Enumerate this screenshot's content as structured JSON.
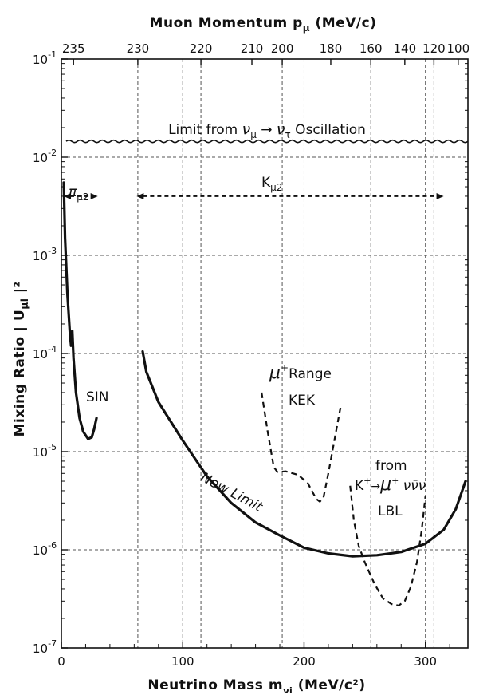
{
  "chart_data": {
    "type": "line",
    "xlabel": "Neutrino Mass  m",
    "xlabel_sub": "νi",
    "xlabel_unit": "(MeV/c²)",
    "ylabel": "Mixing Ratio  | U",
    "ylabel_sub": "μi",
    "ylabel_tail": " |²",
    "top_axis_label": "Muon Momentum  p",
    "top_axis_sub": "μ",
    "top_axis_unit": "(MeV/c)",
    "xlim": [
      0,
      335
    ],
    "ylim": [
      1e-07,
      0.1
    ],
    "y_scale": "log",
    "grid": true,
    "x_ticks": [
      {
        "value": 0,
        "label": "0"
      },
      {
        "value": 100,
        "label": "100"
      },
      {
        "value": 200,
        "label": "200"
      },
      {
        "value": 300,
        "label": "300"
      }
    ],
    "y_ticks": [
      {
        "value": 1e-07,
        "label": "10",
        "exp": "-7"
      },
      {
        "value": 1e-06,
        "label": "10",
        "exp": "-6"
      },
      {
        "value": 1e-05,
        "label": "10",
        "exp": "-5"
      },
      {
        "value": 0.0001,
        "label": "10",
        "exp": "-4"
      },
      {
        "value": 0.001,
        "label": "10",
        "exp": "-3"
      },
      {
        "value": 0.01,
        "label": "10",
        "exp": "-2"
      },
      {
        "value": 0.1,
        "label": "10",
        "exp": "-1"
      }
    ],
    "top_ticks": [
      {
        "value": 10,
        "label": "235"
      },
      {
        "value": 63,
        "label": "230"
      },
      {
        "value": 115,
        "label": "220"
      },
      {
        "value": 157,
        "label": "210"
      },
      {
        "value": 182,
        "label": "200"
      },
      {
        "value": 222,
        "label": "180"
      },
      {
        "value": 255,
        "label": "160"
      },
      {
        "value": 283,
        "label": "140"
      },
      {
        "value": 307,
        "label": "120"
      },
      {
        "value": 327,
        "label": "100"
      }
    ],
    "top_grid": [
      63,
      115,
      182,
      255,
      307
    ],
    "series": [
      {
        "name": "SIN",
        "style": "solid",
        "points": [
          [
            2,
            0.0055
          ],
          [
            3,
            0.0015
          ],
          [
            5,
            0.0004
          ],
          [
            7,
            0.00016
          ],
          [
            8,
            0.00012
          ],
          [
            9,
            0.00017
          ],
          [
            10,
            9e-05
          ],
          [
            12,
            4e-05
          ],
          [
            15,
            2.2e-05
          ],
          [
            18,
            1.6e-05
          ],
          [
            22,
            1.35e-05
          ],
          [
            25,
            1.4e-05
          ],
          [
            27,
            1.7e-05
          ],
          [
            29,
            2.2e-05
          ]
        ]
      },
      {
        "name": "New Limit",
        "style": "solid",
        "points": [
          [
            67,
            0.000105
          ],
          [
            70,
            6.5e-05
          ],
          [
            80,
            3.2e-05
          ],
          [
            100,
            1.3e-05
          ],
          [
            120,
            5.6e-06
          ],
          [
            140,
            3e-06
          ],
          [
            160,
            1.9e-06
          ],
          [
            180,
            1.4e-06
          ],
          [
            200,
            1.05e-06
          ],
          [
            220,
            9.2e-07
          ],
          [
            240,
            8.6e-07
          ],
          [
            260,
            8.8e-07
          ],
          [
            280,
            9.5e-07
          ],
          [
            300,
            1.15e-06
          ],
          [
            315,
            1.6e-06
          ],
          [
            325,
            2.6e-06
          ],
          [
            333,
            5e-06
          ]
        ]
      },
      {
        "name": "μ+ Range KEK",
        "style": "dashed",
        "points": [
          [
            165,
            4e-05
          ],
          [
            170,
            1.6e-05
          ],
          [
            175,
            7e-06
          ],
          [
            178,
            6.2e-06
          ],
          [
            185,
            6.3e-06
          ],
          [
            195,
            5.8e-06
          ],
          [
            203,
            4.8e-06
          ],
          [
            210,
            3.3e-06
          ],
          [
            213,
            3.1e-06
          ],
          [
            216,
            3.4e-06
          ],
          [
            220,
            6e-06
          ],
          [
            225,
            1.3e-05
          ],
          [
            230,
            2.8e-05
          ]
        ]
      },
      {
        "name": "K+ → μ+ νν̄ν LBL",
        "style": "dashed",
        "points": [
          [
            238,
            4.5e-06
          ],
          [
            241,
            2e-06
          ],
          [
            245,
            1.1e-06
          ],
          [
            250,
            7.5e-07
          ],
          [
            258,
            4.5e-07
          ],
          [
            265,
            3.2e-07
          ],
          [
            272,
            2.8e-07
          ],
          [
            278,
            2.7e-07
          ],
          [
            283,
            3e-07
          ],
          [
            288,
            4.2e-07
          ],
          [
            293,
            7.5e-07
          ],
          [
            297,
            1.6e-06
          ],
          [
            300,
            3.5e-06
          ]
        ]
      }
    ],
    "oscillation_limit": {
      "value": 0.0145,
      "x_range": [
        0,
        333
      ],
      "label_pre": "Limit from  ",
      "nu1": "ν",
      "nu1_sub": "μ",
      "arrow": " → ",
      "nu2": "ν",
      "nu2_sub": "τ",
      "label_post": "  Oscillation"
    },
    "ranges": [
      {
        "label": "π",
        "sub": "μ2",
        "x_range": [
          2,
          30
        ],
        "y": 0.004
      },
      {
        "label": "K",
        "sub": "μ2",
        "x_range": [
          62,
          315
        ],
        "y": 0.004
      }
    ],
    "annotations": {
      "sin": "SIN",
      "new_limit": "New Limit",
      "kek_line1": "μ",
      "kek_sup": "+",
      "kek_line1b": "Range",
      "kek_line2": "KEK",
      "lbl_line1": "from",
      "lbl_line2": "K",
      "lbl_sup1": "+",
      "lbl_arrow": "→",
      "lbl_mu": "μ",
      "lbl_sup2": "+",
      "lbl_nus": " νν̄ν",
      "lbl_line3": "LBL"
    }
  }
}
